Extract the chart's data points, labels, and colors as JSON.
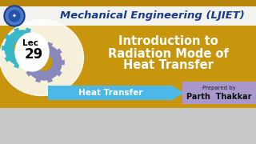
{
  "title_top": "Mechanical Engineering (LJIET)",
  "title_main_line1": "Introduction to",
  "title_main_line2": "Radiation Mode of",
  "title_main_line3": "Heat Transfer",
  "lec_text": "Lec",
  "lec_num": "29",
  "subject_text": "Heat Transfer",
  "prepared_by_line1": "Prepared by",
  "prepared_by_line2": "Parth  Thakkar",
  "bg_top_white": "#f2f2ee",
  "bg_main_gold": "#c8960c",
  "bg_bottom_gray": "#c8c8c8",
  "header_top_gold": "#b8860b",
  "title_blue": "#1a3a8a",
  "subject_bar_blue": "#4db8e8",
  "prepared_bg_lavender": "#a898cc",
  "gear1_teal": "#3ab8c8",
  "gear2_lavender": "#8888bb",
  "lec_bg_white": "#ffffff",
  "white_curve_color": "#e8e0d0"
}
